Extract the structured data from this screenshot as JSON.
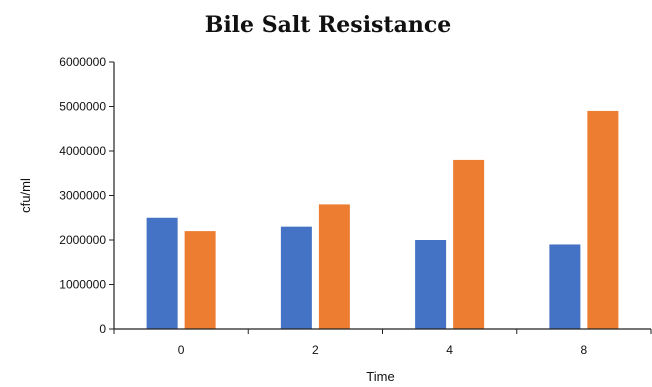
{
  "chart_data": {
    "type": "bar",
    "title": "Bile Salt Resistance",
    "xlabel": "Time",
    "ylabel": "cfu/ml",
    "categories": [
      "0",
      "2",
      "4",
      "8"
    ],
    "series": [
      {
        "color": "#4472C4",
        "values": [
          2500000,
          2300000,
          2000000,
          1900000
        ]
      },
      {
        "color": "#ED7D31",
        "values": [
          2200000,
          2800000,
          3800000,
          4900000
        ]
      }
    ],
    "ylim": [
      0,
      6000000
    ],
    "yticks": [
      "0",
      "1000000",
      "2000000",
      "3000000",
      "4000000",
      "5000000",
      "6000000"
    ],
    "grid": false,
    "legend": "none"
  }
}
